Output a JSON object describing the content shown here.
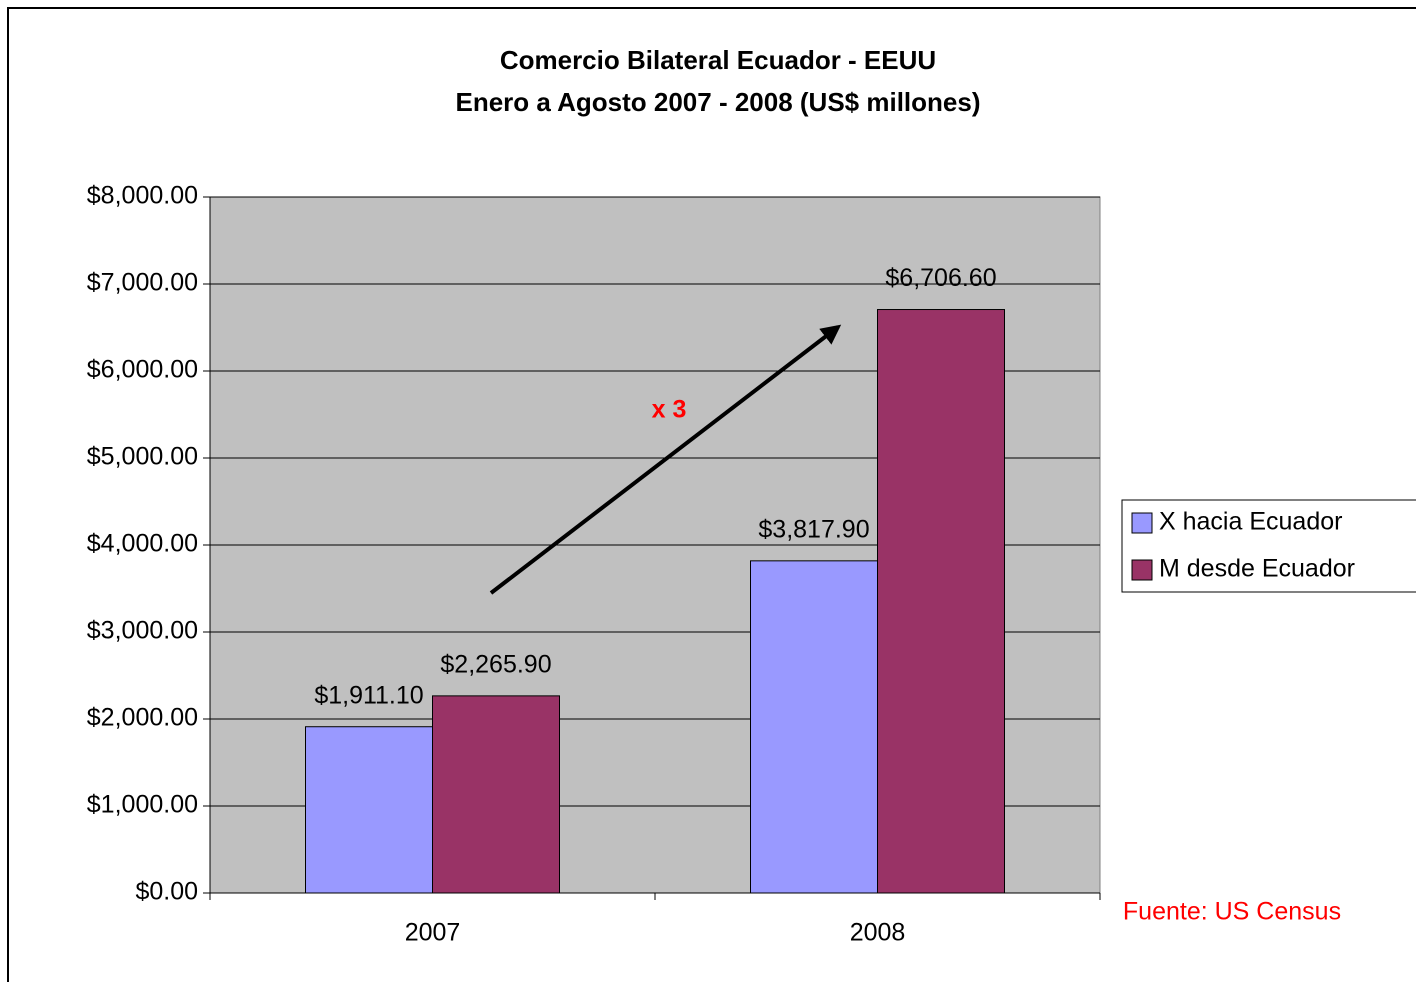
{
  "chart_data": {
    "type": "bar",
    "title": "Comercio Bilateral Ecuador - EEUU",
    "subtitle": "Enero a Agosto 2007 - 2008 (US$ millones)",
    "categories": [
      "2007",
      "2008"
    ],
    "series": [
      {
        "name": "X hacia Ecuador",
        "color": "#9999ff",
        "values": [
          1911.1,
          3817.9
        ],
        "value_labels": [
          "$1,911.10",
          "$3,817.90"
        ]
      },
      {
        "name": "M desde Ecuador",
        "color": "#993366",
        "values": [
          2265.9,
          6706.6
        ],
        "value_labels": [
          "$2,265.90",
          "$6,706.60"
        ]
      }
    ],
    "ylim": [
      0,
      8000
    ],
    "yticks": [
      {
        "value": 0,
        "label": "$0.00"
      },
      {
        "value": 1000,
        "label": "$1,000.00"
      },
      {
        "value": 2000,
        "label": "$2,000.00"
      },
      {
        "value": 3000,
        "label": "$3,000.00"
      },
      {
        "value": 4000,
        "label": "$4,000.00"
      },
      {
        "value": 5000,
        "label": "$5,000.00"
      },
      {
        "value": 6000,
        "label": "$6,000.00"
      },
      {
        "value": 7000,
        "label": "$7,000.00"
      },
      {
        "value": 8000,
        "label": "$8,000.00"
      }
    ],
    "grid": true,
    "legend": "right",
    "annotation": "x 3",
    "source": "Fuente: US Census"
  }
}
